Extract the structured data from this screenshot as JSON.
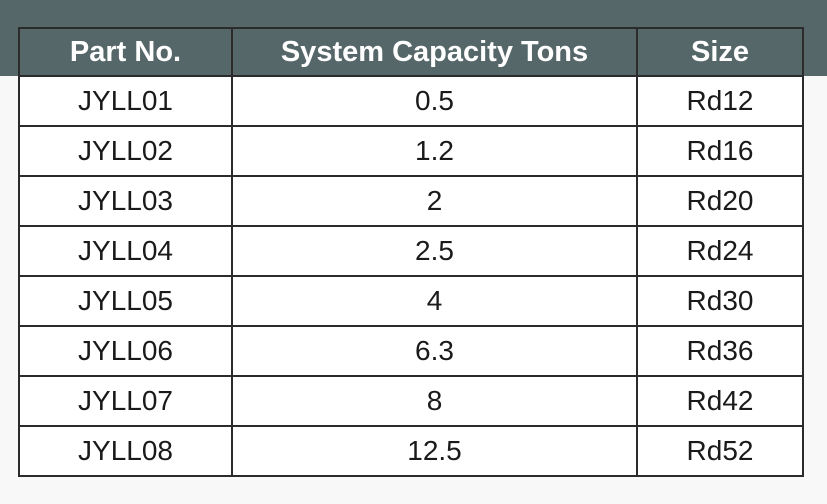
{
  "table": {
    "headers": [
      "Part No.",
      "System Capacity Tons",
      "Size"
    ],
    "rows": [
      [
        "JYLL01",
        "0.5",
        "Rd12"
      ],
      [
        "JYLL02",
        "1.2",
        "Rd16"
      ],
      [
        "JYLL03",
        "2",
        "Rd20"
      ],
      [
        "JYLL04",
        "2.5",
        "Rd24"
      ],
      [
        "JYLL05",
        "4",
        "Rd30"
      ],
      [
        "JYLL06",
        "6.3",
        "Rd36"
      ],
      [
        "JYLL07",
        "8",
        "Rd42"
      ],
      [
        "JYLL08",
        "12.5",
        "Rd52"
      ]
    ]
  },
  "colors": {
    "header_background": "#56676a",
    "header_text": "#ffffff",
    "cell_background": "#ffffff",
    "border": "#2b2b2b"
  }
}
